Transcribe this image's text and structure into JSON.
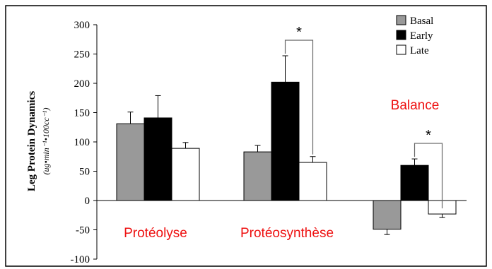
{
  "chart_data": {
    "type": "bar",
    "title": "",
    "xlabel": "",
    "ylabel": "Leg Protein Dynamics",
    "ylabel_unit": "(ug•min⁻¹•100cc⁻¹)",
    "ylim": [
      -100,
      300
    ],
    "yticks": [
      300,
      250,
      200,
      150,
      100,
      50,
      0,
      -50,
      -100
    ],
    "grid": false,
    "legend_position": "top-right",
    "categories": [
      "Protéolyse",
      "Protéosynthèse",
      "Balance"
    ],
    "category_label_color": "#ee1111",
    "series": [
      {
        "name": "Basal",
        "color": "#999999",
        "values": [
          131,
          83,
          -49
        ],
        "errors": [
          20,
          11,
          9
        ]
      },
      {
        "name": "Early",
        "color": "#000000",
        "values": [
          141,
          202,
          60
        ],
        "errors": [
          38,
          45,
          11
        ]
      },
      {
        "name": "Late",
        "color": "#ffffff",
        "values": [
          89,
          65,
          -23
        ],
        "errors": [
          10,
          10,
          6
        ]
      }
    ],
    "annotations": [
      {
        "text": "*",
        "category": 1,
        "from_series": 1,
        "to_series": 2
      },
      {
        "text": "*",
        "category": 2,
        "from_series": 1,
        "to_series": 2
      }
    ]
  }
}
